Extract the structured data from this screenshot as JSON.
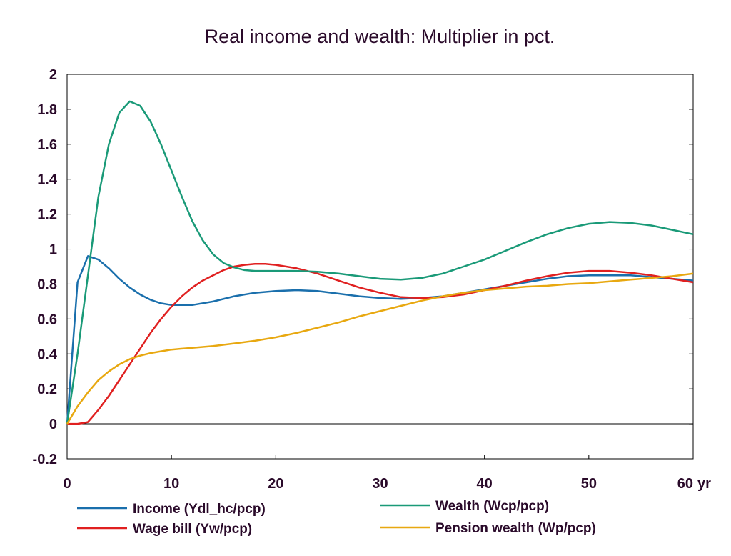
{
  "chart_data": {
    "type": "line",
    "title": "Real income and wealth: Multiplier in pct.",
    "x_unit_label": "yr",
    "xlim": [
      0,
      60
    ],
    "ylim": [
      -0.2,
      2
    ],
    "x_ticks": [
      0,
      10,
      20,
      30,
      40,
      50,
      60
    ],
    "y_ticks": [
      -0.2,
      0,
      0.2,
      0.4,
      0.6,
      0.8,
      1,
      1.2,
      1.4,
      1.6,
      1.8,
      2
    ],
    "x_tick_labels": [
      "0",
      "10",
      "20",
      "30",
      "40",
      "50",
      "60"
    ],
    "y_tick_labels": [
      "-0.2",
      "0",
      "0.2",
      "0.4",
      "0.6",
      "0.8",
      "1",
      "1.2",
      "1.4",
      "1.6",
      "1.8",
      "2"
    ],
    "zero_line": true,
    "grid": false,
    "legend_position": "bottom",
    "series": [
      {
        "name": "Income (Ydl_hc/pcp)",
        "color": "#1a6fac",
        "x": [
          0,
          1,
          2,
          3,
          4,
          5,
          6,
          7,
          8,
          9,
          10,
          11,
          12,
          14,
          16,
          18,
          20,
          22,
          24,
          26,
          28,
          30,
          32,
          34,
          36,
          38,
          40,
          42,
          44,
          46,
          48,
          50,
          52,
          54,
          56,
          58,
          60
        ],
        "values": [
          0,
          0.81,
          0.96,
          0.94,
          0.89,
          0.83,
          0.78,
          0.74,
          0.71,
          0.69,
          0.68,
          0.68,
          0.68,
          0.7,
          0.73,
          0.75,
          0.76,
          0.765,
          0.76,
          0.745,
          0.73,
          0.72,
          0.715,
          0.72,
          0.73,
          0.75,
          0.77,
          0.79,
          0.81,
          0.83,
          0.845,
          0.85,
          0.85,
          0.85,
          0.84,
          0.83,
          0.82
        ]
      },
      {
        "name": "Wage bill (Yw/pcp)",
        "color": "#e02020",
        "x": [
          0,
          1,
          2,
          3,
          4,
          5,
          6,
          7,
          8,
          9,
          10,
          11,
          12,
          13,
          14,
          15,
          16,
          17,
          18,
          19,
          20,
          21,
          22,
          24,
          26,
          28,
          30,
          32,
          34,
          36,
          38,
          40,
          42,
          44,
          46,
          48,
          50,
          52,
          54,
          56,
          58,
          60
        ],
        "values": [
          0,
          0,
          0.01,
          0.08,
          0.16,
          0.25,
          0.34,
          0.43,
          0.52,
          0.6,
          0.67,
          0.73,
          0.78,
          0.82,
          0.85,
          0.88,
          0.9,
          0.91,
          0.915,
          0.915,
          0.91,
          0.9,
          0.89,
          0.86,
          0.82,
          0.78,
          0.75,
          0.725,
          0.72,
          0.725,
          0.74,
          0.765,
          0.79,
          0.82,
          0.845,
          0.865,
          0.875,
          0.875,
          0.865,
          0.85,
          0.83,
          0.81
        ]
      },
      {
        "name": "Wealth (Wcp/pcp)",
        "color": "#1a9a78",
        "x": [
          0,
          1,
          2,
          3,
          4,
          5,
          6,
          7,
          8,
          9,
          10,
          11,
          12,
          13,
          14,
          15,
          16,
          17,
          18,
          19,
          20,
          22,
          24,
          26,
          28,
          30,
          32,
          34,
          36,
          38,
          40,
          42,
          44,
          46,
          48,
          50,
          52,
          54,
          56,
          58,
          60
        ],
        "values": [
          0,
          0.4,
          0.85,
          1.3,
          1.6,
          1.78,
          1.845,
          1.82,
          1.73,
          1.6,
          1.45,
          1.3,
          1.16,
          1.05,
          0.97,
          0.92,
          0.895,
          0.88,
          0.875,
          0.875,
          0.875,
          0.875,
          0.87,
          0.86,
          0.845,
          0.83,
          0.825,
          0.835,
          0.86,
          0.9,
          0.94,
          0.99,
          1.04,
          1.085,
          1.12,
          1.145,
          1.155,
          1.15,
          1.135,
          1.11,
          1.085
        ]
      },
      {
        "name": "Pension wealth (Wp/pcp)",
        "color": "#e8a810",
        "x": [
          0,
          1,
          2,
          3,
          4,
          5,
          6,
          7,
          8,
          9,
          10,
          12,
          14,
          16,
          18,
          20,
          22,
          24,
          26,
          28,
          30,
          32,
          34,
          36,
          38,
          40,
          42,
          44,
          46,
          48,
          50,
          52,
          54,
          56,
          58,
          60
        ],
        "values": [
          0,
          0.1,
          0.18,
          0.25,
          0.3,
          0.34,
          0.37,
          0.39,
          0.405,
          0.415,
          0.425,
          0.435,
          0.445,
          0.46,
          0.475,
          0.495,
          0.52,
          0.55,
          0.58,
          0.615,
          0.645,
          0.675,
          0.705,
          0.73,
          0.75,
          0.765,
          0.775,
          0.785,
          0.79,
          0.8,
          0.805,
          0.815,
          0.825,
          0.835,
          0.845,
          0.86
        ]
      }
    ]
  }
}
